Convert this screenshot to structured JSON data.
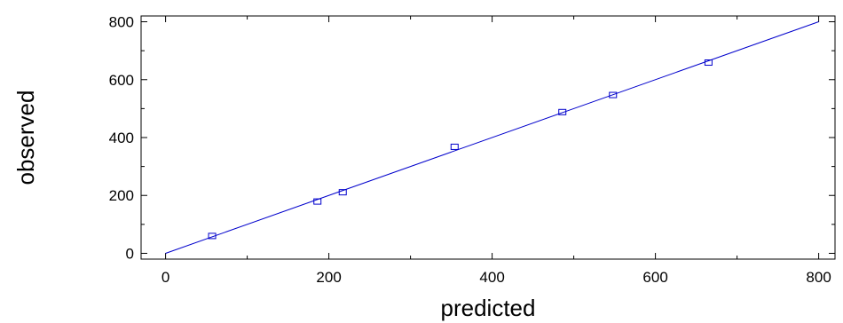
{
  "chart_data": {
    "type": "scatter",
    "title": "",
    "xlabel": "predicted",
    "ylabel": "observed",
    "xlim": [
      -30,
      820
    ],
    "ylim": [
      -20,
      820
    ],
    "xticks": [
      0,
      200,
      400,
      600,
      800
    ],
    "yticks": [
      0,
      200,
      400,
      600,
      800
    ],
    "grid": false,
    "legend": "none",
    "marker": "square",
    "series": [
      {
        "x": [
          57,
          186,
          217,
          354,
          486,
          548,
          665
        ],
        "y": [
          60,
          179,
          211,
          368,
          488,
          547,
          659
        ]
      }
    ],
    "reference_line": {
      "x": [
        0,
        800
      ],
      "y": [
        0,
        800
      ]
    },
    "colors": {
      "points": "#0000cc",
      "line": "#0000cc",
      "axes": "#000000"
    }
  }
}
